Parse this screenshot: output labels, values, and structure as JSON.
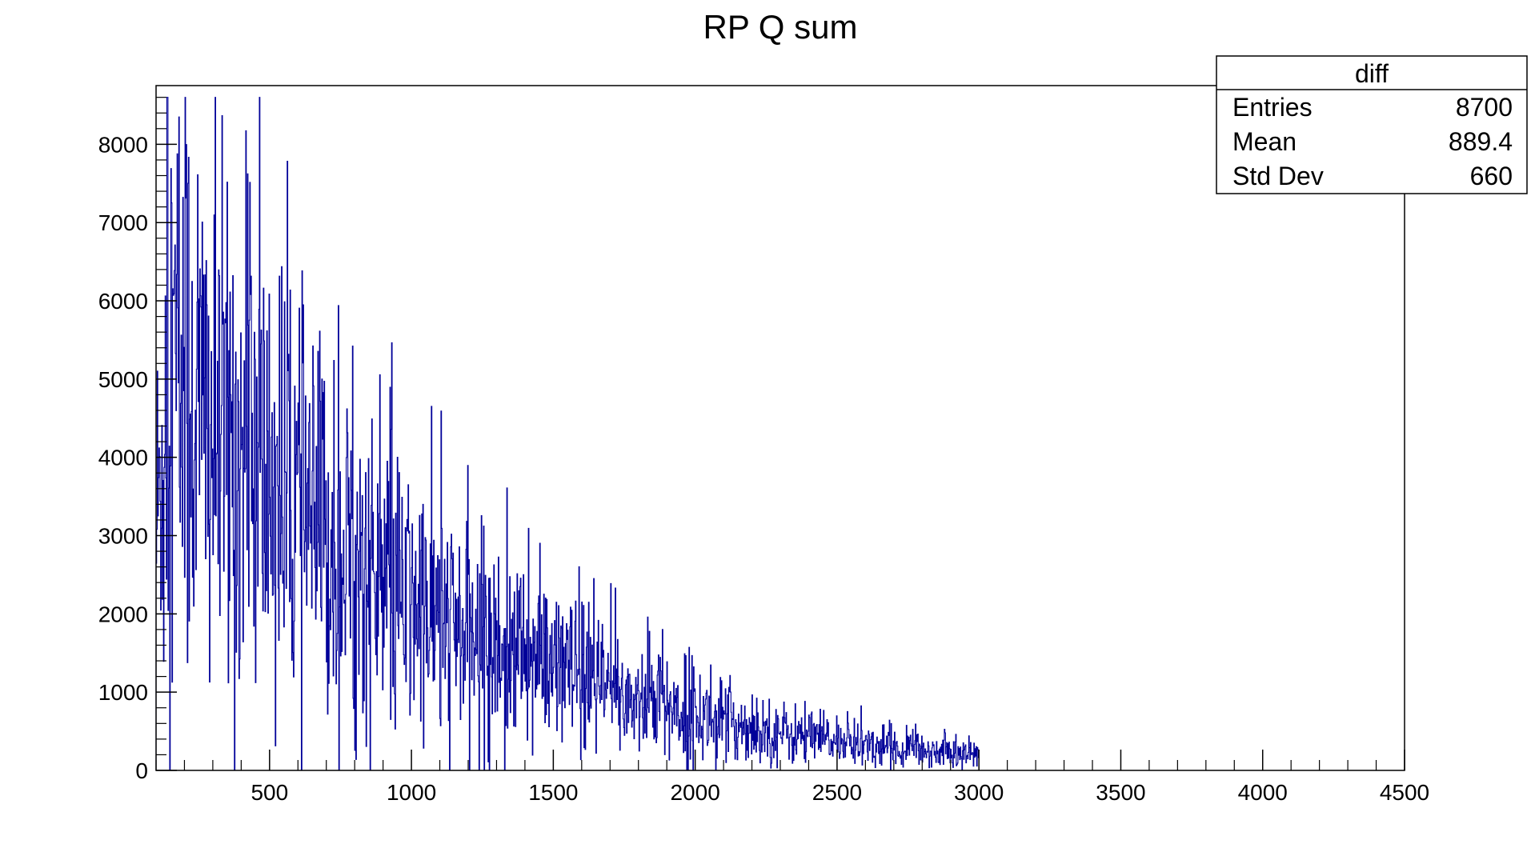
{
  "chart_data": {
    "type": "bar",
    "title": "RP Q sum",
    "xlabel": "",
    "ylabel": "",
    "xlim": [
      100,
      4500
    ],
    "ylim": [
      0,
      8750
    ],
    "xticks": [
      500,
      1000,
      1500,
      2000,
      2500,
      3000,
      3500,
      4000,
      4500
    ],
    "yticks": [
      0,
      1000,
      2000,
      3000,
      4000,
      5000,
      6000,
      7000,
      8000
    ],
    "grid": false,
    "histogram": {
      "bin_width": 2,
      "x_start": 100,
      "x_end": 3000,
      "envelope": [
        {
          "x": 100,
          "y": 3000
        },
        {
          "x": 150,
          "y": 5200
        },
        {
          "x": 200,
          "y": 5000
        },
        {
          "x": 300,
          "y": 4300
        },
        {
          "x": 400,
          "y": 4000
        },
        {
          "x": 500,
          "y": 3700
        },
        {
          "x": 600,
          "y": 3300
        },
        {
          "x": 700,
          "y": 2900
        },
        {
          "x": 800,
          "y": 2600
        },
        {
          "x": 900,
          "y": 2300
        },
        {
          "x": 1000,
          "y": 2100
        },
        {
          "x": 1100,
          "y": 1900
        },
        {
          "x": 1200,
          "y": 1700
        },
        {
          "x": 1300,
          "y": 1550
        },
        {
          "x": 1400,
          "y": 1450
        },
        {
          "x": 1500,
          "y": 1300
        },
        {
          "x": 1600,
          "y": 1150
        },
        {
          "x": 1700,
          "y": 1000
        },
        {
          "x": 1800,
          "y": 900
        },
        {
          "x": 1900,
          "y": 820
        },
        {
          "x": 2000,
          "y": 700
        },
        {
          "x": 2100,
          "y": 630
        },
        {
          "x": 2200,
          "y": 540
        },
        {
          "x": 2300,
          "y": 480
        },
        {
          "x": 2400,
          "y": 420
        },
        {
          "x": 2500,
          "y": 370
        },
        {
          "x": 2600,
          "y": 330
        },
        {
          "x": 2700,
          "y": 290
        },
        {
          "x": 2800,
          "y": 260
        },
        {
          "x": 2900,
          "y": 230
        },
        {
          "x": 3000,
          "y": 200
        }
      ]
    },
    "series": [
      {
        "color": "#000099"
      }
    ]
  },
  "stats_box": {
    "name": "diff",
    "rows": [
      {
        "label": "Entries",
        "value": "8700"
      },
      {
        "label": "Mean",
        "value": "889.4"
      },
      {
        "label": "Std Dev",
        "value": "660"
      }
    ]
  }
}
